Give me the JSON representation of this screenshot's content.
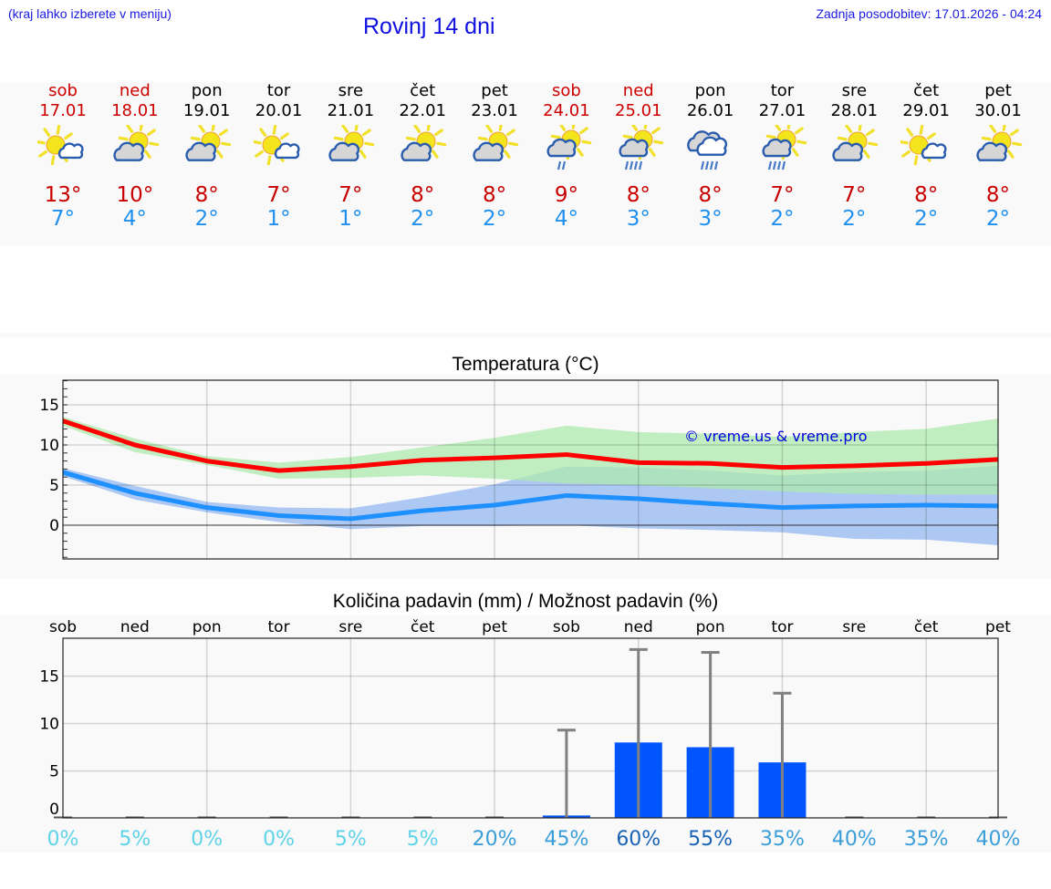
{
  "header": {
    "note": "(kraj lahko izberete v meniju)",
    "title": "Rovinj 14 dni",
    "last_update": "Zadnja posodobitev: 17.01.2026 - 04:24"
  },
  "days": [
    {
      "name": "sob",
      "date": "17.01",
      "weekend": true,
      "icon": "sun-small-cloud-icon",
      "tmax": "13°",
      "tmin": "7°"
    },
    {
      "name": "ned",
      "date": "18.01",
      "weekend": true,
      "icon": "partly-cloudy-icon",
      "tmax": "10°",
      "tmin": "4°"
    },
    {
      "name": "pon",
      "date": "19.01",
      "weekend": false,
      "icon": "partly-cloudy-icon",
      "tmax": "8°",
      "tmin": "2°"
    },
    {
      "name": "tor",
      "date": "20.01",
      "weekend": false,
      "icon": "sun-small-cloud-icon",
      "tmax": "7°",
      "tmin": "1°"
    },
    {
      "name": "sre",
      "date": "21.01",
      "weekend": false,
      "icon": "partly-cloudy-icon",
      "tmax": "7°",
      "tmin": "1°"
    },
    {
      "name": "čet",
      "date": "22.01",
      "weekend": false,
      "icon": "partly-cloudy-icon",
      "tmax": "8°",
      "tmin": "2°"
    },
    {
      "name": "pet",
      "date": "23.01",
      "weekend": false,
      "icon": "partly-cloudy-icon",
      "tmax": "8°",
      "tmin": "2°"
    },
    {
      "name": "sob",
      "date": "24.01",
      "weekend": true,
      "icon": "sun-cloud-light-rain-icon",
      "tmax": "9°",
      "tmin": "4°"
    },
    {
      "name": "ned",
      "date": "25.01",
      "weekend": true,
      "icon": "sun-cloud-rain-icon",
      "tmax": "8°",
      "tmin": "3°"
    },
    {
      "name": "pon",
      "date": "26.01",
      "weekend": false,
      "icon": "cloudy-rain-icon",
      "tmax": "8°",
      "tmin": "3°"
    },
    {
      "name": "tor",
      "date": "27.01",
      "weekend": false,
      "icon": "sun-cloud-rain-icon",
      "tmax": "7°",
      "tmin": "2°"
    },
    {
      "name": "sre",
      "date": "28.01",
      "weekend": false,
      "icon": "partly-cloudy-icon",
      "tmax": "7°",
      "tmin": "2°"
    },
    {
      "name": "čet",
      "date": "29.01",
      "weekend": false,
      "icon": "sun-small-cloud-icon",
      "tmax": "8°",
      "tmin": "2°"
    },
    {
      "name": "pet",
      "date": "30.01",
      "weekend": false,
      "icon": "partly-cloudy-icon",
      "tmax": "8°",
      "tmin": "2°"
    }
  ],
  "colors": {
    "weekend": "#cc0000",
    "tmax": "#c80000",
    "tmin": "#2090ee",
    "max_line": "#ff0000",
    "min_line": "#1e90ff",
    "max_band": "#aeeaae",
    "min_band": "#adc8f2",
    "overlap_band": "#7fcaa8",
    "precip_bar": "#0055ff",
    "error_bar": "#808080",
    "watermark": "#0000dd"
  },
  "chart_data": [
    {
      "type": "line",
      "title": "Temperatura (°C)",
      "xlabel": "",
      "ylabel": "",
      "categories": [
        "17.01",
        "18.01",
        "19.01",
        "20.01",
        "21.01",
        "22.01",
        "23.01",
        "24.01",
        "25.01",
        "26.01",
        "27.01",
        "28.01",
        "29.01",
        "30.01"
      ],
      "series": [
        {
          "name": "max",
          "values": [
            13.0,
            10.0,
            8.0,
            6.8,
            7.3,
            8.1,
            8.4,
            8.8,
            7.8,
            7.7,
            7.2,
            7.4,
            7.7,
            8.2
          ],
          "band_low": [
            12.4,
            9.1,
            7.5,
            5.8,
            5.9,
            6.2,
            5.8,
            5.2,
            5.0,
            4.6,
            4.2,
            3.9,
            3.8,
            3.8
          ],
          "band_high": [
            13.5,
            10.8,
            8.6,
            7.8,
            8.5,
            9.7,
            10.9,
            12.4,
            11.6,
            11.4,
            11.0,
            11.6,
            12.0,
            13.3
          ]
        },
        {
          "name": "min",
          "values": [
            6.6,
            4.0,
            2.2,
            1.2,
            0.8,
            1.8,
            2.5,
            3.7,
            3.3,
            2.7,
            2.2,
            2.4,
            2.5,
            2.4
          ],
          "band_low": [
            6.1,
            3.2,
            1.6,
            0.4,
            -0.5,
            -0.1,
            -0.1,
            0.0,
            -0.4,
            -0.6,
            -0.9,
            -1.7,
            -1.8,
            -2.5
          ],
          "band_high": [
            7.1,
            4.9,
            2.9,
            2.2,
            2.1,
            3.5,
            5.1,
            7.3,
            7.2,
            6.8,
            6.2,
            6.6,
            6.8,
            7.4
          ]
        }
      ],
      "yticks": [
        0,
        5,
        10,
        15
      ],
      "ylim": [
        -4.2,
        18.1
      ],
      "grid": true,
      "annotation": "© vreme.us & vreme.pro"
    },
    {
      "type": "bar",
      "title": "Količina padavin (mm) / Možnost padavin (%)",
      "categories": [
        "sob",
        "ned",
        "pon",
        "tor",
        "sre",
        "čet",
        "pet",
        "sob",
        "ned",
        "pon",
        "tor",
        "sre",
        "čet",
        "pet"
      ],
      "values": [
        0,
        0,
        0,
        0,
        0,
        0,
        0,
        0.3,
        8.0,
        7.5,
        5.9,
        0,
        0,
        0
      ],
      "error_high": [
        0,
        0,
        0,
        0,
        0,
        0,
        0,
        9.3,
        17.8,
        17.5,
        13.2,
        0,
        0,
        0
      ],
      "probability": [
        "0%",
        "5%",
        "0%",
        "0%",
        "5%",
        "5%",
        "20%",
        "45%",
        "60%",
        "55%",
        "35%",
        "40%",
        "35%",
        "40%"
      ],
      "probability_colors": [
        "#5fd3e8",
        "#5fd3e8",
        "#5fd3e8",
        "#5fd3e8",
        "#5fd3e8",
        "#5fd3e8",
        "#3b9ed8",
        "#3b9ed8",
        "#1b63b6",
        "#1b63b6",
        "#3b9ed8",
        "#3b9ed8",
        "#3b9ed8",
        "#3b9ed8"
      ],
      "yticks": [
        0,
        5,
        10,
        15
      ],
      "ylim": [
        0,
        19
      ],
      "grid": true,
      "ylabel": "mm"
    }
  ],
  "temp_chart": {
    "title": "Temperatura (°C)",
    "watermark": "© vreme.us & vreme.pro"
  },
  "precip_chart": {
    "title": "Količina padavin (mm) / Možnost padavin (%)"
  }
}
